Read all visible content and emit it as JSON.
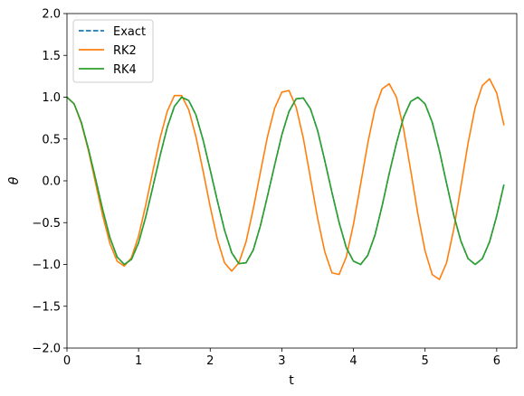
{
  "chart_data": {
    "type": "line",
    "title": "",
    "xlabel": "t",
    "ylabel": "θ",
    "xlim": [
      0,
      6.28
    ],
    "ylim": [
      -2.0,
      2.0
    ],
    "xticks": [
      0,
      1,
      2,
      3,
      4,
      5,
      6
    ],
    "xtick_labels": [
      "0",
      "1",
      "2",
      "3",
      "4",
      "5",
      "6"
    ],
    "yticks": [
      -2.0,
      -1.5,
      -1.0,
      -0.5,
      0.0,
      0.5,
      1.0,
      1.5,
      2.0
    ],
    "ytick_labels": [
      "−2.0",
      "−1.5",
      "−1.0",
      "−0.5",
      "0.0",
      "0.5",
      "1.0",
      "1.5",
      "2.0"
    ],
    "grid": false,
    "legend_position": "top-left",
    "x": [
      0.0,
      0.1,
      0.2,
      0.3,
      0.4,
      0.5,
      0.6,
      0.7,
      0.8,
      0.9,
      1.0,
      1.1,
      1.2,
      1.3,
      1.4,
      1.5,
      1.6,
      1.7,
      1.8,
      1.9,
      2.0,
      2.1,
      2.2,
      2.3,
      2.4,
      2.5,
      2.6,
      2.7,
      2.8,
      2.9,
      3.0,
      3.1,
      3.2,
      3.3,
      3.4,
      3.5,
      3.6,
      3.7,
      3.8,
      3.9,
      4.0,
      4.1,
      4.2,
      4.3,
      4.4,
      4.5,
      4.6,
      4.7,
      4.8,
      4.9,
      5.0,
      5.1,
      5.2,
      5.3,
      5.4,
      5.5,
      5.6,
      5.7,
      5.8,
      5.9,
      6.0,
      6.1
    ],
    "series": [
      {
        "name": "Exact",
        "color": "#1f77b4",
        "dash": "dashed",
        "values": [
          1.0,
          0.92,
          0.7,
          0.38,
          0.02,
          -0.35,
          -0.68,
          -0.91,
          -1.0,
          -0.94,
          -0.74,
          -0.43,
          -0.07,
          0.3,
          0.64,
          0.89,
          1.0,
          0.96,
          0.79,
          0.49,
          0.13,
          -0.24,
          -0.59,
          -0.86,
          -0.99,
          -0.98,
          -0.83,
          -0.54,
          -0.18,
          0.19,
          0.55,
          0.83,
          0.98,
          0.99,
          0.86,
          0.6,
          0.24,
          -0.14,
          -0.5,
          -0.8,
          -0.96,
          -1.0,
          -0.89,
          -0.65,
          -0.3,
          0.09,
          0.45,
          0.76,
          0.95,
          1.0,
          0.92,
          0.7,
          0.36,
          -0.03,
          -0.41,
          -0.72,
          -0.93,
          -1.0,
          -0.93,
          -0.73,
          -0.42,
          -0.05
        ]
      },
      {
        "name": "RK2",
        "color": "#ff7f0e",
        "dash": "solid",
        "values": [
          1.0,
          0.92,
          0.69,
          0.36,
          -0.03,
          -0.42,
          -0.75,
          -0.96,
          -1.02,
          -0.92,
          -0.66,
          -0.29,
          0.12,
          0.51,
          0.83,
          1.02,
          1.02,
          0.85,
          0.53,
          0.12,
          -0.31,
          -0.7,
          -0.98,
          -1.08,
          -0.98,
          -0.73,
          -0.34,
          0.1,
          0.53,
          0.87,
          1.06,
          1.08,
          0.88,
          0.51,
          0.03,
          -0.45,
          -0.85,
          -1.1,
          -1.12,
          -0.91,
          -0.52,
          -0.04,
          0.45,
          0.86,
          1.1,
          1.16,
          1.0,
          0.62,
          0.12,
          -0.4,
          -0.84,
          -1.12,
          -1.18,
          -0.98,
          -0.58,
          -0.07,
          0.45,
          0.88,
          1.14,
          1.22,
          1.05,
          0.67
        ]
      },
      {
        "name": "RK4",
        "color": "#2ca02c",
        "dash": "solid",
        "values": [
          1.0,
          0.92,
          0.7,
          0.38,
          0.02,
          -0.35,
          -0.68,
          -0.91,
          -1.0,
          -0.94,
          -0.74,
          -0.43,
          -0.07,
          0.3,
          0.64,
          0.89,
          1.0,
          0.96,
          0.79,
          0.49,
          0.13,
          -0.24,
          -0.59,
          -0.86,
          -0.99,
          -0.98,
          -0.83,
          -0.54,
          -0.18,
          0.19,
          0.55,
          0.83,
          0.98,
          0.99,
          0.86,
          0.6,
          0.24,
          -0.14,
          -0.5,
          -0.8,
          -0.96,
          -1.0,
          -0.89,
          -0.65,
          -0.3,
          0.09,
          0.45,
          0.76,
          0.95,
          1.0,
          0.92,
          0.7,
          0.36,
          -0.03,
          -0.41,
          -0.72,
          -0.93,
          -1.0,
          -0.93,
          -0.73,
          -0.42,
          -0.05
        ]
      }
    ]
  }
}
